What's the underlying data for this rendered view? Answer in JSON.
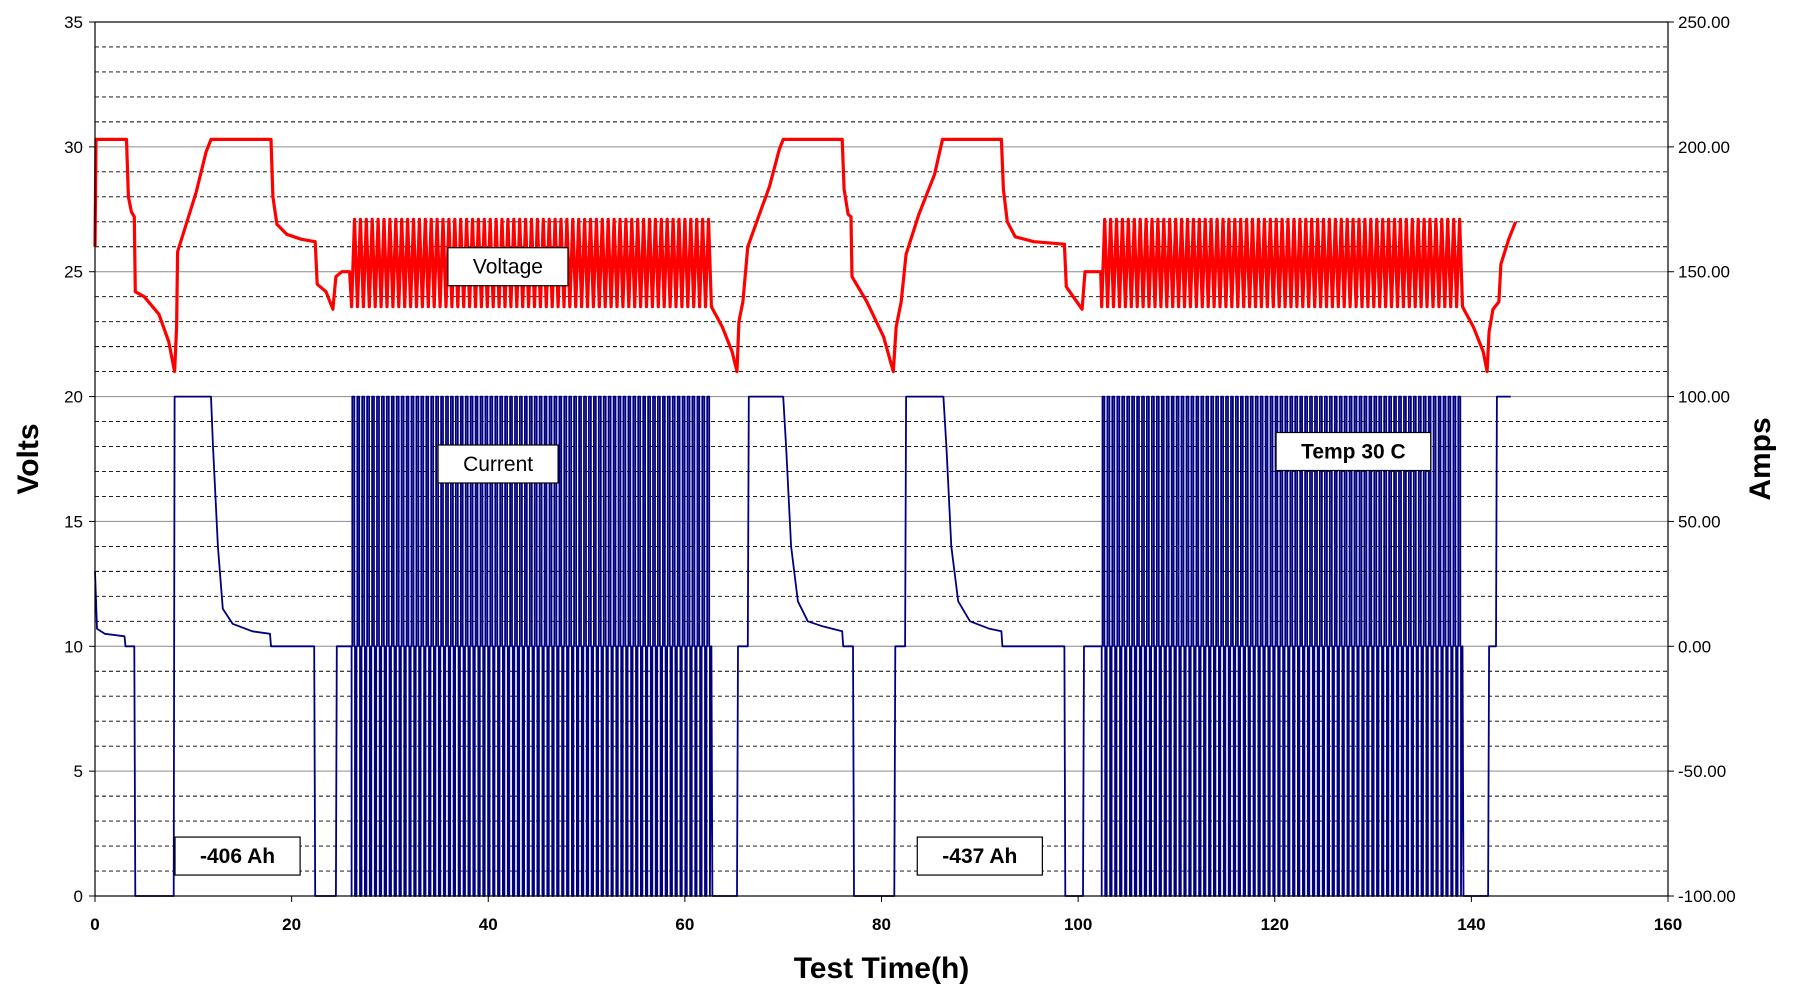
{
  "chart_data": {
    "type": "line",
    "xlabel": "Test Time(h)",
    "ylabel": "Volts",
    "y2label": "Amps",
    "xlim": [
      0,
      160
    ],
    "ylim": [
      0,
      35
    ],
    "y2lim": [
      -100,
      250
    ],
    "xticks": [
      "0",
      "20",
      "40",
      "60",
      "80",
      "100",
      "120",
      "140",
      "160"
    ],
    "yticks": [
      "0",
      "5",
      "10",
      "15",
      "20",
      "25",
      "30",
      "35"
    ],
    "y2ticks": [
      "-100.00",
      "-50.00",
      "0.00",
      "50.00",
      "100.00",
      "150.00",
      "200.00",
      "250.00"
    ],
    "grid": {
      "major": true,
      "minor_dashed": true
    },
    "colors": {
      "voltage": "#ff0000",
      "current": "#000080"
    },
    "annotations": [
      {
        "text": "Voltage",
        "x": 42,
        "y": 25.2
      },
      {
        "text": "Current",
        "x": 41,
        "y": 17.3
      },
      {
        "text": "Temp 30 C",
        "x": 128,
        "y": 17.8,
        "bold": true
      },
      {
        "text": "-406 Ah",
        "x": 14.5,
        "y": 1.6,
        "bold": true
      },
      {
        "text": "-437 Ah",
        "x": 90,
        "y": 1.6,
        "bold": true
      }
    ],
    "series": [
      {
        "name": "Voltage",
        "axis": "left",
        "points": [
          [
            0,
            26.0
          ],
          [
            0.1,
            30.3
          ],
          [
            3.2,
            30.3
          ],
          [
            3.4,
            28.0
          ],
          [
            3.7,
            27.4
          ],
          [
            4.0,
            27.2
          ],
          [
            4.1,
            24.2
          ],
          [
            5.0,
            24.0
          ],
          [
            6.5,
            23.3
          ],
          [
            7.5,
            22.2
          ],
          [
            8.1,
            21.0
          ],
          [
            8.3,
            22.8
          ],
          [
            8.4,
            25.8
          ],
          [
            9.2,
            26.8
          ],
          [
            10.3,
            28.2
          ],
          [
            11.3,
            29.8
          ],
          [
            11.8,
            30.3
          ],
          [
            17.9,
            30.3
          ],
          [
            18.1,
            28.0
          ],
          [
            18.5,
            26.9
          ],
          [
            19.5,
            26.5
          ],
          [
            21.0,
            26.3
          ],
          [
            22.4,
            26.2
          ],
          [
            22.6,
            24.5
          ],
          [
            23.5,
            24.2
          ],
          [
            24.2,
            23.5
          ],
          [
            24.5,
            24.8
          ],
          [
            25.1,
            25.0
          ],
          [
            25.9,
            25.0
          ],
          [
            26.1,
            23.6
          ]
        ],
        "oscillation_regions": [
          {
            "x_start": 26.1,
            "x_end": 62.7,
            "low": 23.6,
            "high": 27.1,
            "period_h": 0.6
          }
        ],
        "points_2": [
          [
            62.7,
            23.6
          ],
          [
            63.8,
            22.8
          ],
          [
            64.8,
            21.8
          ],
          [
            65.3,
            21.0
          ],
          [
            65.5,
            23.0
          ],
          [
            65.9,
            23.8
          ],
          [
            66.4,
            26.0
          ],
          [
            67.4,
            27.1
          ],
          [
            68.6,
            28.4
          ],
          [
            69.6,
            29.9
          ],
          [
            70.0,
            30.3
          ],
          [
            76.0,
            30.3
          ],
          [
            76.2,
            28.3
          ],
          [
            76.6,
            27.3
          ],
          [
            76.9,
            27.2
          ],
          [
            77.0,
            24.8
          ],
          [
            78.5,
            23.8
          ],
          [
            80.2,
            22.4
          ],
          [
            81.2,
            21.0
          ],
          [
            81.5,
            22.8
          ],
          [
            82.0,
            23.8
          ],
          [
            82.5,
            25.7
          ],
          [
            83.8,
            27.3
          ],
          [
            85.4,
            28.9
          ],
          [
            86.2,
            30.3
          ],
          [
            92.2,
            30.3
          ],
          [
            92.4,
            28.3
          ],
          [
            92.8,
            27.0
          ],
          [
            93.6,
            26.4
          ],
          [
            95.5,
            26.2
          ],
          [
            98.6,
            26.1
          ],
          [
            98.8,
            24.4
          ],
          [
            99.5,
            24.0
          ],
          [
            100.4,
            23.5
          ],
          [
            100.7,
            25.0
          ],
          [
            101.5,
            25.0
          ],
          [
            102.3,
            25.0
          ],
          [
            102.4,
            23.6
          ]
        ],
        "oscillation_regions_2": [
          {
            "x_start": 102.4,
            "x_end": 139.1,
            "low": 23.6,
            "high": 27.1,
            "period_h": 0.6
          }
        ],
        "points_3": [
          [
            139.1,
            23.6
          ],
          [
            140.2,
            22.8
          ],
          [
            141.2,
            21.8
          ],
          [
            141.6,
            21.0
          ],
          [
            141.8,
            22.6
          ],
          [
            142.2,
            23.5
          ],
          [
            142.8,
            23.8
          ],
          [
            143.0,
            25.3
          ],
          [
            143.8,
            26.3
          ],
          [
            144.5,
            27.0
          ]
        ]
      },
      {
        "name": "Current",
        "axis": "right",
        "points": [
          [
            0,
            30.0
          ],
          [
            0.2,
            7.0
          ],
          [
            1.0,
            5.0
          ],
          [
            3.0,
            4.0
          ],
          [
            3.1,
            0
          ],
          [
            4.0,
            0
          ],
          [
            4.1,
            -100
          ],
          [
            8.0,
            -100
          ],
          [
            8.1,
            100
          ],
          [
            11.8,
            100
          ],
          [
            12.0,
            80.0
          ],
          [
            12.5,
            40.0
          ],
          [
            13.0,
            15.0
          ],
          [
            14.0,
            9.0
          ],
          [
            16.0,
            6.0
          ],
          [
            17.8,
            5.0
          ],
          [
            17.9,
            0
          ],
          [
            22.3,
            0
          ],
          [
            22.4,
            -100
          ],
          [
            24.5,
            -100
          ],
          [
            24.6,
            0
          ],
          [
            26.1,
            0
          ]
        ],
        "oscillation_regions": [
          {
            "x_start": 26.1,
            "x_end": 62.7,
            "low": -100,
            "mid": 0,
            "high": 100,
            "period_h": 0.5
          }
        ],
        "points_2": [
          [
            62.7,
            0
          ],
          [
            62.8,
            -100
          ],
          [
            65.3,
            -100
          ],
          [
            65.4,
            0
          ],
          [
            66.4,
            0
          ],
          [
            66.5,
            100
          ],
          [
            70.0,
            100
          ],
          [
            70.3,
            80.0
          ],
          [
            70.8,
            40.0
          ],
          [
            71.5,
            18.0
          ],
          [
            72.5,
            10.0
          ],
          [
            74.0,
            8.0
          ],
          [
            76.0,
            6.0
          ],
          [
            76.1,
            0
          ],
          [
            77.1,
            0
          ],
          [
            77.2,
            -100
          ],
          [
            81.3,
            -100
          ],
          [
            81.4,
            0
          ],
          [
            82.4,
            0
          ],
          [
            82.5,
            100
          ],
          [
            86.3,
            100
          ],
          [
            86.6,
            80.0
          ],
          [
            87.1,
            40.0
          ],
          [
            87.8,
            18.0
          ],
          [
            89.0,
            10.0
          ],
          [
            91.0,
            7.0
          ],
          [
            92.2,
            6.0
          ],
          [
            92.3,
            0
          ],
          [
            98.6,
            0
          ],
          [
            98.7,
            -100
          ],
          [
            100.5,
            -100
          ],
          [
            100.6,
            0
          ],
          [
            102.4,
            0
          ]
        ],
        "oscillation_regions_2": [
          {
            "x_start": 102.4,
            "x_end": 139.1,
            "low": -100,
            "mid": 0,
            "high": 100,
            "period_h": 0.5
          }
        ],
        "points_3": [
          [
            139.1,
            0
          ],
          [
            139.2,
            -100
          ],
          [
            141.7,
            -100
          ],
          [
            141.8,
            0
          ],
          [
            142.5,
            0
          ],
          [
            142.6,
            100
          ],
          [
            144.0,
            100
          ]
        ]
      }
    ]
  }
}
